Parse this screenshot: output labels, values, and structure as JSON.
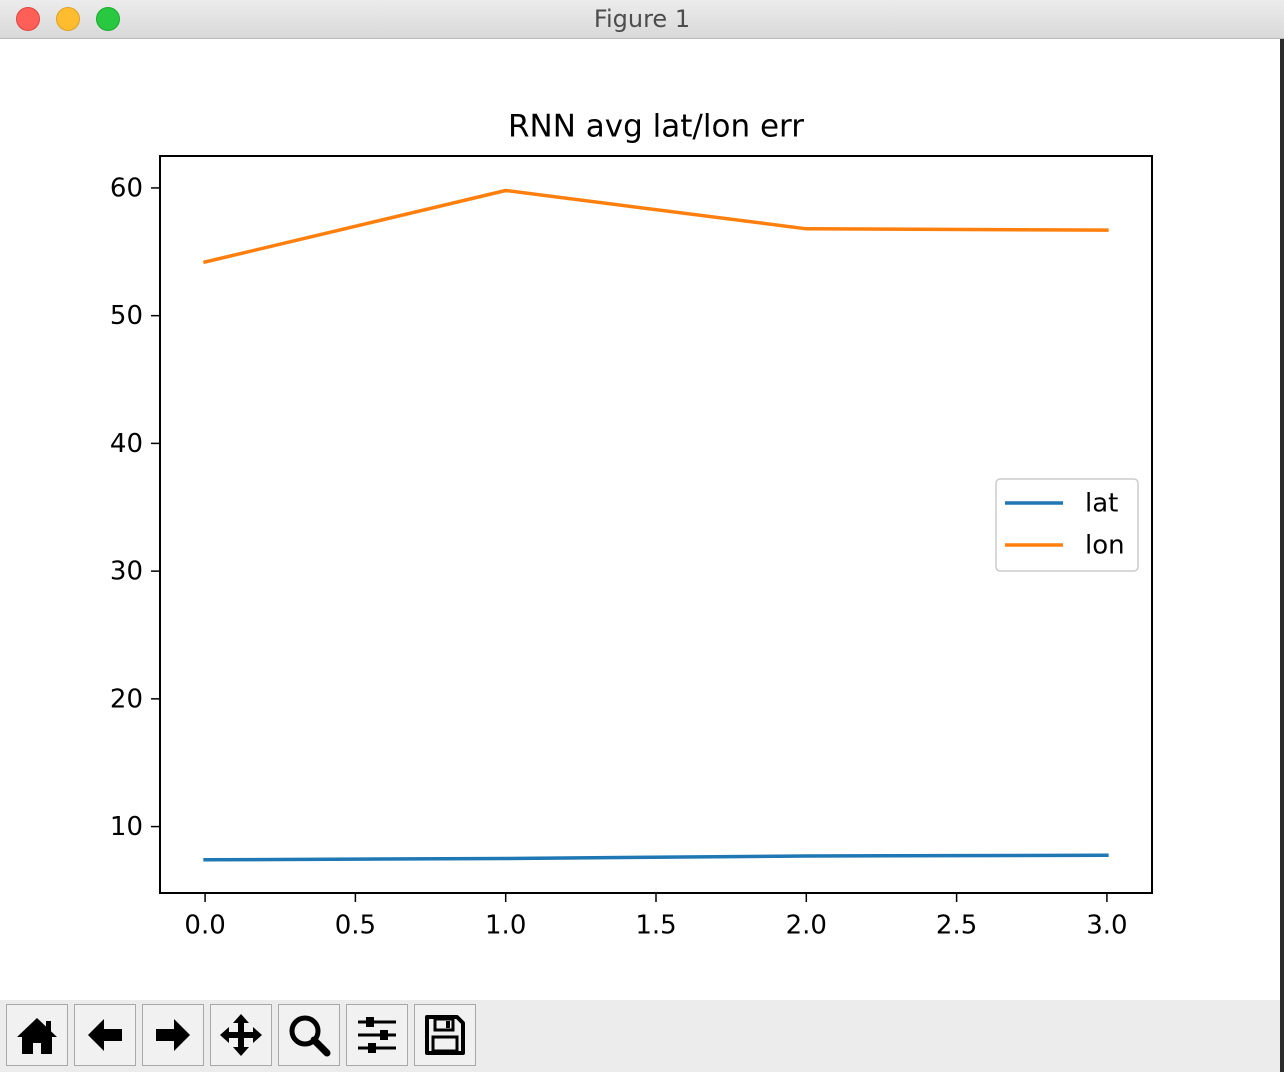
{
  "window": {
    "title": "Figure 1"
  },
  "toolbar": {
    "buttons": [
      {
        "name": "home-button",
        "icon": "home-icon"
      },
      {
        "name": "back-button",
        "icon": "arrow-left-icon"
      },
      {
        "name": "forward-button",
        "icon": "arrow-right-icon"
      },
      {
        "name": "pan-button",
        "icon": "move-icon"
      },
      {
        "name": "zoom-button",
        "icon": "magnifier-icon"
      },
      {
        "name": "configure-subplots-button",
        "icon": "sliders-icon"
      },
      {
        "name": "save-button",
        "icon": "floppy-disk-icon"
      }
    ]
  },
  "chart_data": {
    "type": "line",
    "title": "RNN avg lat/lon err",
    "xlabel": "",
    "ylabel": "",
    "x": [
      0,
      1,
      2,
      3
    ],
    "xlim": [
      -0.15,
      3.15
    ],
    "ylim": [
      4.8,
      62.5
    ],
    "xticks": [
      "0.0",
      "0.5",
      "1.0",
      "1.5",
      "2.0",
      "2.5",
      "3.0"
    ],
    "yticks": [
      "10",
      "20",
      "30",
      "40",
      "50",
      "60"
    ],
    "grid": false,
    "legend_position": "center-right",
    "series": [
      {
        "name": "lat",
        "color": "#1f77b4",
        "values": [
          7.4,
          7.5,
          7.7,
          7.75
        ]
      },
      {
        "name": "lon",
        "color": "#ff7f0e",
        "values": [
          54.2,
          59.8,
          56.8,
          56.7
        ]
      }
    ]
  }
}
